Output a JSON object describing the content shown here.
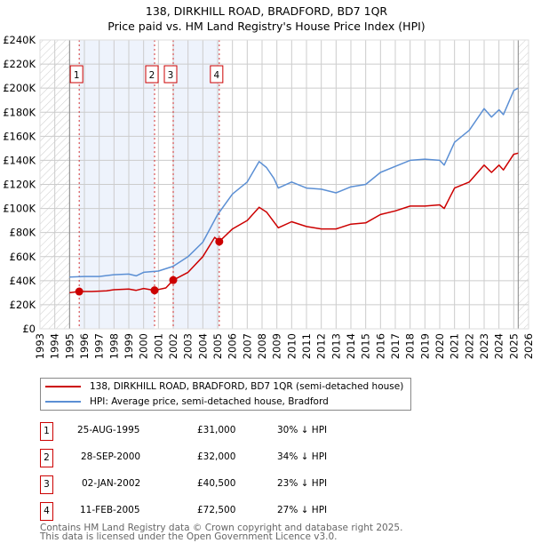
{
  "title": [
    "138, DIRKHILL ROAD, BRADFORD, BD7 1QR",
    "Price paid vs. HM Land Registry's House Price Index (HPI)"
  ],
  "colors": {
    "property": "#cc0000",
    "hpi": "#5b8fd4",
    "shade": "#eef3fc",
    "grid": "#cccccc"
  },
  "chart_data": {
    "type": "line",
    "xlim": [
      1993,
      2026
    ],
    "ylim": [
      0,
      240000
    ],
    "yticks": [
      0,
      20000,
      40000,
      60000,
      80000,
      100000,
      120000,
      140000,
      160000,
      180000,
      200000,
      220000,
      240000
    ],
    "ytick_labels": [
      "£0",
      "£20K",
      "£40K",
      "£60K",
      "£80K",
      "£100K",
      "£120K",
      "£140K",
      "£160K",
      "£180K",
      "£200K",
      "£220K",
      "£240K"
    ],
    "xticks": [
      "1993",
      "1994",
      "1995",
      "1996",
      "1997",
      "1998",
      "1999",
      "2000",
      "2001",
      "2002",
      "2003",
      "2004",
      "2005",
      "2006",
      "2007",
      "2008",
      "2009",
      "2010",
      "2011",
      "2012",
      "2013",
      "2014",
      "2015",
      "2016",
      "2017",
      "2018",
      "2019",
      "2020",
      "2021",
      "2022",
      "2023",
      "2024",
      "2025",
      "2026"
    ],
    "data_range": [
      1995,
      2025.3
    ],
    "series": [
      {
        "name": "138, DIRKHILL ROAD, BRADFORD, BD7 1QR (semi-detached house)",
        "x": [
          1995,
          1995.65,
          1996.5,
          1997.5,
          1998,
          1999,
          1999.5,
          2000,
          2000.74,
          2001.5,
          2002,
          2003,
          2004,
          2004.8,
          2005.11,
          2006,
          2007,
          2007.8,
          2008.3,
          2009.1,
          2010,
          2011,
          2012,
          2013,
          2014,
          2015,
          2016,
          2017,
          2018,
          2019,
          2020,
          2020.3,
          2021,
          2022,
          2023,
          2023.5,
          2024,
          2024.3,
          2025,
          2025.3
        ],
        "values": [
          30000,
          31000,
          31000,
          31500,
          32500,
          33000,
          32000,
          33500,
          32000,
          34000,
          40500,
          47000,
          60000,
          76000,
          72500,
          83000,
          90000,
          101000,
          97000,
          84000,
          89000,
          85000,
          83000,
          83000,
          87000,
          88000,
          95000,
          98000,
          102000,
          102000,
          103000,
          100000,
          117000,
          122000,
          136000,
          130000,
          136000,
          132000,
          145000,
          146000
        ]
      },
      {
        "name": "HPI: Average price, semi-detached house, Bradford",
        "x": [
          1995,
          1996,
          1997,
          1998,
          1999,
          1999.5,
          2000,
          2001,
          2002,
          2003,
          2004,
          2005,
          2006,
          2007,
          2007.8,
          2008.3,
          2008.8,
          2009.1,
          2010,
          2011,
          2012,
          2013,
          2014,
          2015,
          2016,
          2017,
          2018,
          2019,
          2020,
          2020.3,
          2021,
          2022,
          2023,
          2023.5,
          2024,
          2024.3,
          2025,
          2025.3
        ],
        "values": [
          43000,
          43500,
          43500,
          45000,
          45500,
          44000,
          47000,
          48000,
          52000,
          60000,
          72000,
          95000,
          112000,
          122000,
          139000,
          134000,
          125000,
          117000,
          122000,
          117000,
          116000,
          113000,
          118000,
          120000,
          130000,
          135000,
          140000,
          141000,
          140000,
          136000,
          155000,
          165000,
          183000,
          176000,
          182000,
          178000,
          198000,
          200000
        ]
      }
    ],
    "sales": [
      {
        "label": "1",
        "x": 1995.65,
        "value": 31000
      },
      {
        "label": "2",
        "x": 2000.74,
        "value": 32000
      },
      {
        "label": "3",
        "x": 2002.0,
        "value": 40500
      },
      {
        "label": "4",
        "x": 2005.11,
        "value": 72500
      }
    ]
  },
  "legend": [
    "138, DIRKHILL ROAD, BRADFORD, BD7 1QR (semi-detached house)",
    "HPI: Average price, semi-detached house, Bradford"
  ],
  "table": [
    {
      "num": "1",
      "date": "25-AUG-1995",
      "price": "£31,000",
      "hpi": "30% ↓ HPI"
    },
    {
      "num": "2",
      "date": "28-SEP-2000",
      "price": "£32,000",
      "hpi": "34% ↓ HPI"
    },
    {
      "num": "3",
      "date": "02-JAN-2002",
      "price": "£40,500",
      "hpi": "23% ↓ HPI"
    },
    {
      "num": "4",
      "date": "11-FEB-2005",
      "price": "£72,500",
      "hpi": "27% ↓ HPI"
    }
  ],
  "footer": [
    "Contains HM Land Registry data © Crown copyright and database right 2025.",
    "This data is licensed under the Open Government Licence v3.0."
  ]
}
